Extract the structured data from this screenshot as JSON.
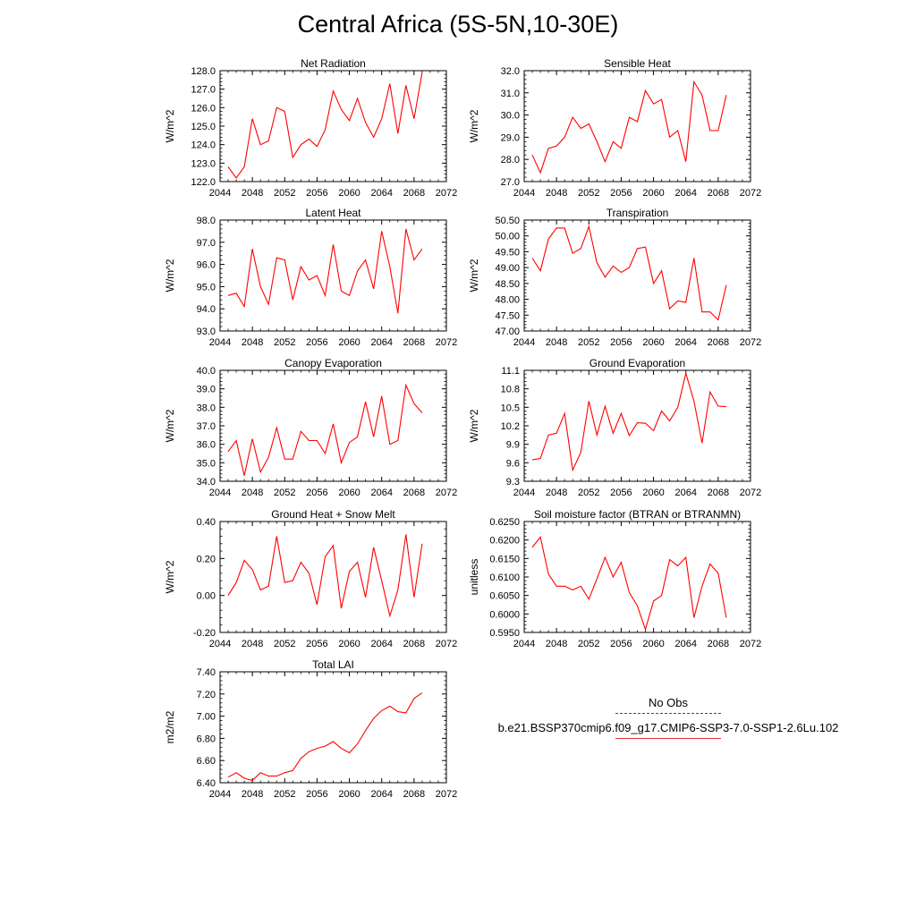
{
  "title": "Central Africa (5S-5N,10-30E)",
  "colors": {
    "series": "#ff0000",
    "obs": "#3b3bb8"
  },
  "legend": {
    "entries": [
      {
        "label": "No Obs",
        "style": "dashed",
        "color": "#3b3bb8"
      },
      {
        "label": "b.e21.BSSP370cmip6.f09_g17.CMIP6-SSP3-7.0-SSP1-2.6Lu.102",
        "style": "solid",
        "color": "#e03030"
      }
    ]
  },
  "chart_data": [
    {
      "type": "line",
      "title": "Net Radiation",
      "ylabel": "W/m^2",
      "xlim": [
        2044,
        2072
      ],
      "xticks": [
        "2044",
        "2048",
        "2052",
        "2056",
        "2060",
        "2064",
        "2068",
        "2072"
      ],
      "ylim": [
        122.0,
        128.0
      ],
      "yticks": [
        "122.0",
        "123.0",
        "124.0",
        "125.0",
        "126.0",
        "127.0",
        "128.0"
      ],
      "x": [
        2045,
        2046,
        2047,
        2048,
        2049,
        2050,
        2051,
        2052,
        2053,
        2054,
        2055,
        2056,
        2057,
        2058,
        2059,
        2060,
        2061,
        2062,
        2063,
        2064,
        2065,
        2066,
        2067,
        2068,
        2069
      ],
      "series": [
        {
          "values": [
            122.8,
            122.2,
            122.8,
            125.4,
            124.0,
            124.2,
            126.0,
            125.8,
            123.3,
            124.0,
            124.3,
            123.9,
            124.8,
            126.9,
            125.9,
            125.3,
            126.5,
            125.2,
            124.4,
            125.4,
            127.3,
            124.6,
            127.2,
            125.4,
            127.9
          ]
        }
      ]
    },
    {
      "type": "line",
      "title": "Sensible Heat",
      "ylabel": "W/m^2",
      "xlim": [
        2044,
        2072
      ],
      "xticks": [
        "2044",
        "2048",
        "2052",
        "2056",
        "2060",
        "2064",
        "2068",
        "2072"
      ],
      "ylim": [
        27.0,
        32.0
      ],
      "yticks": [
        "27.0",
        "28.0",
        "29.0",
        "30.0",
        "31.0",
        "32.0"
      ],
      "x": [
        2045,
        2046,
        2047,
        2048,
        2049,
        2050,
        2051,
        2052,
        2053,
        2054,
        2055,
        2056,
        2057,
        2058,
        2059,
        2060,
        2061,
        2062,
        2063,
        2064,
        2065,
        2066,
        2067,
        2068,
        2069
      ],
      "series": [
        {
          "values": [
            28.2,
            27.4,
            28.5,
            28.6,
            29.0,
            29.9,
            29.4,
            29.6,
            28.8,
            27.9,
            28.8,
            28.5,
            29.9,
            29.7,
            31.1,
            30.5,
            30.7,
            29.0,
            29.3,
            27.9,
            31.5,
            30.9,
            29.3,
            29.3,
            30.9
          ]
        }
      ]
    },
    {
      "type": "line",
      "title": "Latent Heat",
      "ylabel": "W/m^2",
      "xlim": [
        2044,
        2072
      ],
      "xticks": [
        "2044",
        "2048",
        "2052",
        "2056",
        "2060",
        "2064",
        "2068",
        "2072"
      ],
      "ylim": [
        93.0,
        98.0
      ],
      "yticks": [
        "93.0",
        "94.0",
        "95.0",
        "96.0",
        "97.0",
        "98.0"
      ],
      "x": [
        2045,
        2046,
        2047,
        2048,
        2049,
        2050,
        2051,
        2052,
        2053,
        2054,
        2055,
        2056,
        2057,
        2058,
        2059,
        2060,
        2061,
        2062,
        2063,
        2064,
        2065,
        2066,
        2067,
        2068,
        2069
      ],
      "series": [
        {
          "values": [
            94.6,
            94.7,
            94.1,
            96.7,
            95.0,
            94.2,
            96.3,
            96.2,
            94.4,
            95.9,
            95.3,
            95.5,
            94.6,
            96.9,
            94.8,
            94.6,
            95.7,
            96.2,
            94.9,
            97.5,
            95.9,
            93.8,
            97.6,
            96.2,
            96.7
          ]
        }
      ]
    },
    {
      "type": "line",
      "title": "Transpiration",
      "ylabel": "W/m^2",
      "xlim": [
        2044,
        2072
      ],
      "xticks": [
        "2044",
        "2048",
        "2052",
        "2056",
        "2060",
        "2064",
        "2068",
        "2072"
      ],
      "ylim": [
        47.0,
        50.5
      ],
      "yticks": [
        "47.00",
        "47.50",
        "48.00",
        "48.50",
        "49.00",
        "49.50",
        "50.00",
        "50.50"
      ],
      "x": [
        2045,
        2046,
        2047,
        2048,
        2049,
        2050,
        2051,
        2052,
        2053,
        2054,
        2055,
        2056,
        2057,
        2058,
        2059,
        2060,
        2061,
        2062,
        2063,
        2064,
        2065,
        2066,
        2067,
        2068,
        2069
      ],
      "series": [
        {
          "values": [
            49.3,
            48.9,
            49.9,
            50.25,
            50.25,
            49.45,
            49.6,
            50.3,
            49.15,
            48.7,
            49.05,
            48.85,
            49.0,
            49.6,
            49.65,
            48.5,
            48.9,
            47.7,
            47.95,
            47.9,
            49.3,
            47.6,
            47.6,
            47.35,
            48.45
          ]
        }
      ]
    },
    {
      "type": "line",
      "title": "Canopy Evaporation",
      "ylabel": "W/m^2",
      "xlim": [
        2044,
        2072
      ],
      "xticks": [
        "2044",
        "2048",
        "2052",
        "2056",
        "2060",
        "2064",
        "2068",
        "2072"
      ],
      "ylim": [
        34.0,
        40.0
      ],
      "yticks": [
        "34.0",
        "35.0",
        "36.0",
        "37.0",
        "38.0",
        "39.0",
        "40.0"
      ],
      "x": [
        2045,
        2046,
        2047,
        2048,
        2049,
        2050,
        2051,
        2052,
        2053,
        2054,
        2055,
        2056,
        2057,
        2058,
        2059,
        2060,
        2061,
        2062,
        2063,
        2064,
        2065,
        2066,
        2067,
        2068,
        2069
      ],
      "series": [
        {
          "values": [
            35.6,
            36.2,
            34.3,
            36.3,
            34.5,
            35.3,
            36.9,
            35.2,
            35.2,
            36.7,
            36.2,
            36.2,
            35.5,
            37.1,
            35.0,
            36.1,
            36.4,
            38.3,
            36.4,
            38.6,
            36.0,
            36.2,
            39.2,
            38.2,
            37.7
          ]
        }
      ]
    },
    {
      "type": "line",
      "title": "Ground Evaporation",
      "ylabel": "W/m^2",
      "xlim": [
        2044,
        2072
      ],
      "xticks": [
        "2044",
        "2048",
        "2052",
        "2056",
        "2060",
        "2064",
        "2068",
        "2072"
      ],
      "ylim": [
        9.3,
        11.1
      ],
      "yticks": [
        "9.3",
        "9.6",
        "9.9",
        "10.2",
        "10.5",
        "10.8",
        "11.1"
      ],
      "x": [
        2045,
        2046,
        2047,
        2048,
        2049,
        2050,
        2051,
        2052,
        2053,
        2054,
        2055,
        2056,
        2057,
        2058,
        2059,
        2060,
        2061,
        2062,
        2063,
        2064,
        2065,
        2066,
        2067,
        2068,
        2069
      ],
      "series": [
        {
          "values": [
            9.65,
            9.67,
            10.05,
            10.08,
            10.4,
            9.48,
            9.77,
            10.6,
            10.05,
            10.52,
            10.08,
            10.4,
            10.04,
            10.25,
            10.24,
            10.12,
            10.44,
            10.28,
            10.5,
            11.05,
            10.6,
            9.92,
            10.75,
            10.52,
            10.51
          ]
        }
      ]
    },
    {
      "type": "line",
      "title": "Ground Heat + Snow Melt",
      "ylabel": "W/m^2",
      "xlim": [
        2044,
        2072
      ],
      "xticks": [
        "2044",
        "2048",
        "2052",
        "2056",
        "2060",
        "2064",
        "2068",
        "2072"
      ],
      "ylim": [
        -0.2,
        0.4
      ],
      "yticks": [
        "-0.20",
        "0.00",
        "0.20",
        "0.40"
      ],
      "x": [
        2045,
        2046,
        2047,
        2048,
        2049,
        2050,
        2051,
        2052,
        2053,
        2054,
        2055,
        2056,
        2057,
        2058,
        2059,
        2060,
        2061,
        2062,
        2063,
        2064,
        2065,
        2066,
        2067,
        2068,
        2069
      ],
      "series": [
        {
          "values": [
            0.0,
            0.07,
            0.19,
            0.14,
            0.03,
            0.05,
            0.32,
            0.07,
            0.08,
            0.18,
            0.12,
            -0.05,
            0.21,
            0.27,
            -0.07,
            0.13,
            0.18,
            -0.01,
            0.26,
            0.08,
            -0.11,
            0.03,
            0.33,
            -0.01,
            0.28
          ]
        }
      ]
    },
    {
      "type": "line",
      "title": "Soil moisture factor (BTRAN or BTRANMN)",
      "ylabel": "unitless",
      "xlim": [
        2044,
        2072
      ],
      "xticks": [
        "2044",
        "2048",
        "2052",
        "2056",
        "2060",
        "2064",
        "2068",
        "2072"
      ],
      "ylim": [
        0.595,
        0.625
      ],
      "yticks": [
        "0.5950",
        "0.6000",
        "0.6050",
        "0.6100",
        "0.6150",
        "0.6200",
        "0.6250"
      ],
      "x": [
        2045,
        2046,
        2047,
        2048,
        2049,
        2050,
        2051,
        2052,
        2053,
        2054,
        2055,
        2056,
        2057,
        2058,
        2059,
        2060,
        2061,
        2062,
        2063,
        2064,
        2065,
        2066,
        2067,
        2068,
        2069
      ],
      "series": [
        {
          "values": [
            0.618,
            0.6208,
            0.6108,
            0.6075,
            0.6075,
            0.6065,
            0.6075,
            0.604,
            0.6095,
            0.6153,
            0.61,
            0.614,
            0.6058,
            0.6022,
            0.5958,
            0.6035,
            0.605,
            0.6147,
            0.613,
            0.6153,
            0.599,
            0.6075,
            0.6135,
            0.611,
            0.599
          ]
        }
      ]
    },
    {
      "type": "line",
      "title": "Total LAI",
      "ylabel": "m2/m2",
      "xlim": [
        2044,
        2072
      ],
      "xticks": [
        "2044",
        "2048",
        "2052",
        "2056",
        "2060",
        "2064",
        "2068",
        "2072"
      ],
      "ylim": [
        6.4,
        7.4
      ],
      "yticks": [
        "6.40",
        "6.60",
        "6.80",
        "7.00",
        "7.20",
        "7.40"
      ],
      "x": [
        2045,
        2046,
        2047,
        2048,
        2049,
        2050,
        2051,
        2052,
        2053,
        2054,
        2055,
        2056,
        2057,
        2058,
        2059,
        2060,
        2061,
        2062,
        2063,
        2064,
        2065,
        2066,
        2067,
        2068,
        2069
      ],
      "series": [
        {
          "values": [
            6.45,
            6.49,
            6.44,
            6.42,
            6.49,
            6.46,
            6.46,
            6.49,
            6.51,
            6.62,
            6.68,
            6.71,
            6.73,
            6.77,
            6.71,
            6.67,
            6.75,
            6.87,
            6.98,
            7.05,
            7.09,
            7.04,
            7.03,
            7.16,
            7.21
          ]
        }
      ]
    }
  ]
}
